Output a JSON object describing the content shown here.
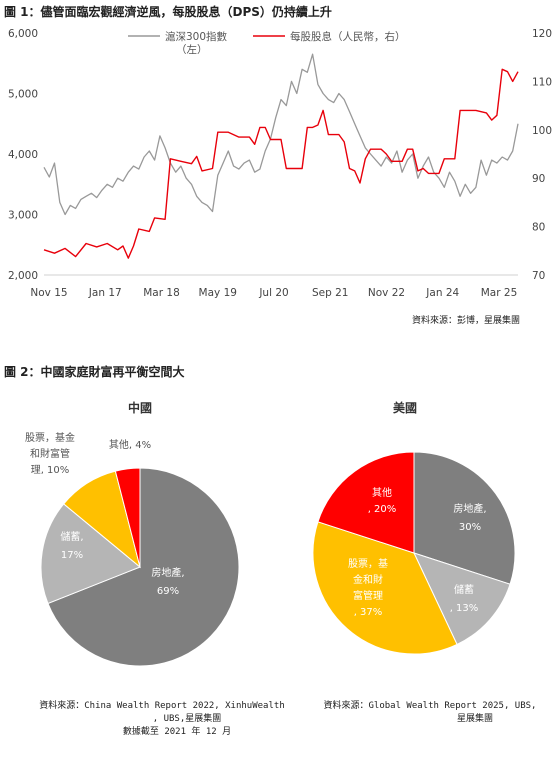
{
  "figure1": {
    "title": "圖 1：儘管面臨宏觀經濟逆風，每股股息（DPS）仍持續上升",
    "source": "資料來源：彭博，星展集團",
    "chart_data": {
      "type": "line",
      "x_tick_labels": [
        "Nov 15",
        "Jan 17",
        "Mar 18",
        "May 19",
        "Jul 20",
        "Sep 21",
        "Nov 22",
        "Jan 24",
        "Mar 25"
      ],
      "y_left": {
        "ticks": [
          "2,000",
          "3,000",
          "4,000",
          "5,000",
          "6,000"
        ],
        "ylim": [
          2000,
          6000
        ]
      },
      "y_right": {
        "ticks": [
          "70",
          "80",
          "90",
          "100",
          "110",
          "120"
        ],
        "ylim": [
          70,
          120
        ]
      },
      "grid": false,
      "legend_position": "top-center",
      "series": [
        {
          "name": "滬深300指數",
          "name_line2": "（左）",
          "axis": "left",
          "color": "#999999",
          "points": [
            [
              0,
              3780
            ],
            [
              1,
              3620
            ],
            [
              2,
              3850
            ],
            [
              3,
              3200
            ],
            [
              4,
              3000
            ],
            [
              5,
              3150
            ],
            [
              6,
              3100
            ],
            [
              7,
              3250
            ],
            [
              8,
              3300
            ],
            [
              9,
              3350
            ],
            [
              10,
              3280
            ],
            [
              11,
              3400
            ],
            [
              12,
              3500
            ],
            [
              13,
              3450
            ],
            [
              14,
              3600
            ],
            [
              15,
              3550
            ],
            [
              16,
              3700
            ],
            [
              17,
              3800
            ],
            [
              18,
              3750
            ],
            [
              19,
              3950
            ],
            [
              20,
              4050
            ],
            [
              21,
              3900
            ],
            [
              22,
              4300
            ],
            [
              23,
              4100
            ],
            [
              24,
              3850
            ],
            [
              25,
              3700
            ],
            [
              26,
              3800
            ],
            [
              27,
              3600
            ],
            [
              28,
              3500
            ],
            [
              29,
              3300
            ],
            [
              30,
              3200
            ],
            [
              31,
              3150
            ],
            [
              32,
              3050
            ],
            [
              33,
              3650
            ],
            [
              34,
              3850
            ],
            [
              35,
              4050
            ],
            [
              36,
              3800
            ],
            [
              37,
              3750
            ],
            [
              38,
              3850
            ],
            [
              39,
              3900
            ],
            [
              40,
              3700
            ],
            [
              41,
              3750
            ],
            [
              42,
              4050
            ],
            [
              43,
              4250
            ],
            [
              44,
              4600
            ],
            [
              45,
              4900
            ],
            [
              46,
              4800
            ],
            [
              47,
              5200
            ],
            [
              48,
              5000
            ],
            [
              49,
              5400
            ],
            [
              50,
              5350
            ],
            [
              51,
              5650
            ],
            [
              52,
              5150
            ],
            [
              53,
              5000
            ],
            [
              54,
              4900
            ],
            [
              55,
              4850
            ],
            [
              56,
              5000
            ],
            [
              57,
              4900
            ],
            [
              58,
              4700
            ],
            [
              59,
              4500
            ],
            [
              60,
              4300
            ],
            [
              61,
              4100
            ],
            [
              62,
              4000
            ],
            [
              63,
              3900
            ],
            [
              64,
              3800
            ],
            [
              65,
              3950
            ],
            [
              66,
              3850
            ],
            [
              67,
              4050
            ],
            [
              68,
              3700
            ],
            [
              69,
              3900
            ],
            [
              70,
              4000
            ],
            [
              71,
              3600
            ],
            [
              72,
              3800
            ],
            [
              73,
              3950
            ],
            [
              74,
              3700
            ],
            [
              75,
              3600
            ],
            [
              76,
              3450
            ],
            [
              77,
              3700
            ],
            [
              78,
              3550
            ],
            [
              79,
              3300
            ],
            [
              80,
              3500
            ],
            [
              81,
              3350
            ],
            [
              82,
              3450
            ],
            [
              83,
              3900
            ],
            [
              84,
              3650
            ],
            [
              85,
              3900
            ],
            [
              86,
              3850
            ],
            [
              87,
              3950
            ],
            [
              88,
              3900
            ],
            [
              89,
              4050
            ],
            [
              90,
              4500
            ]
          ]
        },
        {
          "name": "每股股息（人民幣，右）",
          "axis": "right",
          "color": "#e8000b",
          "points": [
            [
              0,
              75.2
            ],
            [
              2,
              74.5
            ],
            [
              4,
              75.5
            ],
            [
              6,
              73.8
            ],
            [
              8,
              76.5
            ],
            [
              10,
              75.8
            ],
            [
              12,
              76.5
            ],
            [
              14,
              75.2
            ],
            [
              15,
              76.0
            ],
            [
              16,
              73.5
            ],
            [
              17,
              76.0
            ],
            [
              18,
              79.5
            ],
            [
              20,
              79.0
            ],
            [
              21,
              81.8
            ],
            [
              23,
              81.5
            ],
            [
              24,
              94.0
            ],
            [
              26,
              93.5
            ],
            [
              28,
              93.0
            ],
            [
              29,
              94.5
            ],
            [
              30,
              91.5
            ],
            [
              32,
              92.0
            ],
            [
              33,
              99.5
            ],
            [
              35,
              99.5
            ],
            [
              37,
              98.5
            ],
            [
              39,
              98.5
            ],
            [
              40,
              97.0
            ],
            [
              41,
              100.5
            ],
            [
              42,
              100.5
            ],
            [
              43,
              98.0
            ],
            [
              45,
              98.0
            ],
            [
              46,
              92.0
            ],
            [
              49,
              92.0
            ],
            [
              50,
              100.5
            ],
            [
              51,
              100.5
            ],
            [
              52,
              101.0
            ],
            [
              53,
              104.0
            ],
            [
              54,
              99.0
            ],
            [
              56,
              99.0
            ],
            [
              57,
              97.5
            ],
            [
              58,
              92.0
            ],
            [
              59,
              91.5
            ],
            [
              60,
              89.0
            ],
            [
              61,
              94.0
            ],
            [
              62,
              96.0
            ],
            [
              64,
              96.0
            ],
            [
              65,
              95.0
            ],
            [
              66,
              93.5
            ],
            [
              68,
              93.5
            ],
            [
              69,
              96.0
            ],
            [
              70,
              96.0
            ],
            [
              71,
              91.5
            ],
            [
              72,
              92.0
            ],
            [
              73,
              91.0
            ],
            [
              75,
              91.0
            ],
            [
              76,
              94.0
            ],
            [
              78,
              94.0
            ],
            [
              79,
              104.0
            ],
            [
              82,
              104.0
            ],
            [
              84,
              103.5
            ],
            [
              85,
              102.0
            ],
            [
              86,
              103.0
            ],
            [
              87,
              112.5
            ],
            [
              88,
              112.0
            ],
            [
              89,
              110.0
            ],
            [
              90,
              112.0
            ]
          ]
        }
      ]
    }
  },
  "figure2": {
    "title": "圖 2：中國家庭財富再平衡空間大",
    "chart_data": [
      {
        "type": "pie",
        "title": "中國",
        "slices": [
          {
            "label": "房地產",
            "value": 69,
            "color": "#7f7f7f"
          },
          {
            "label": "儲蓄",
            "value": 17,
            "color": "#b5b5b5"
          },
          {
            "label": "股票，基金和財富管理",
            "value": 10,
            "color": "#ffc000"
          },
          {
            "label": "其他",
            "value": 4,
            "color": "#ff0000"
          }
        ],
        "slice_text": [
          {
            "lines": [
              "房地產,",
              "69%"
            ]
          },
          {
            "lines": [
              "儲蓄,",
              "17%"
            ]
          },
          {
            "lines": [
              "股票，基金",
              "和財富管",
              "理, 10%"
            ]
          },
          {
            "lines": [
              "其他, 4%"
            ]
          }
        ]
      },
      {
        "type": "pie",
        "title": "美國",
        "slices": [
          {
            "label": "房地產",
            "value": 30,
            "color": "#7f7f7f"
          },
          {
            "label": "儲蓄",
            "value": 13,
            "color": "#b5b5b5"
          },
          {
            "label": "股票，基金和財富管理",
            "value": 37,
            "color": "#ffc000"
          },
          {
            "label": "其他",
            "value": 20,
            "color": "#ff0000"
          }
        ],
        "slice_text": [
          {
            "lines": [
              "房地產,",
              "30%"
            ]
          },
          {
            "lines": [
              "儲蓄",
              ", 13%"
            ]
          },
          {
            "lines": [
              "股票，基",
              "金和財",
              "富管理",
              ", 37%"
            ]
          },
          {
            "lines": [
              "其他",
              ", 20%"
            ]
          }
        ]
      }
    ],
    "source_left": [
      "資料來源：China Wealth Report 2022, XinhuWealth",
      ", UBS,星展集團",
      "數據截至 2021 年 12 月"
    ],
    "source_right": [
      "資料來源：Global Wealth Report 2025, UBS,",
      "星展集團"
    ]
  }
}
